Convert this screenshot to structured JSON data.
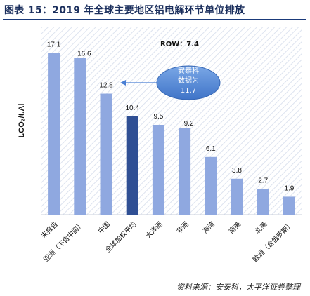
{
  "title": "图表 15：2019 年全球主要地区铝电解环节单位排放",
  "source": "资料来源：安泰科，太平洋证券整理",
  "chart_data": {
    "type": "bar",
    "ylabel": "t.CO₂/t.Al",
    "categories": [
      "未报告",
      "亚洲（不含中国）",
      "中国",
      "全球加权平均",
      "大洋洲",
      "非洲",
      "海湾",
      "南美",
      "北美",
      "欧洲（含俄罗斯）"
    ],
    "values": [
      17.1,
      16.6,
      12.8,
      10.4,
      9.5,
      9.2,
      6.1,
      3.8,
      2.7,
      1.9
    ],
    "highlight_index": 3,
    "ylim": [
      0,
      19
    ],
    "grid": false,
    "bar_color": "#8fa8e0",
    "highlight_color": "#2f4f94",
    "annotations": [
      {
        "text": "ROW：7.4"
      },
      {
        "text": "安泰科数据为11.7",
        "lines": [
          "安泰科",
          "数据为",
          "11.7"
        ],
        "points_to_index": 2
      }
    ]
  }
}
